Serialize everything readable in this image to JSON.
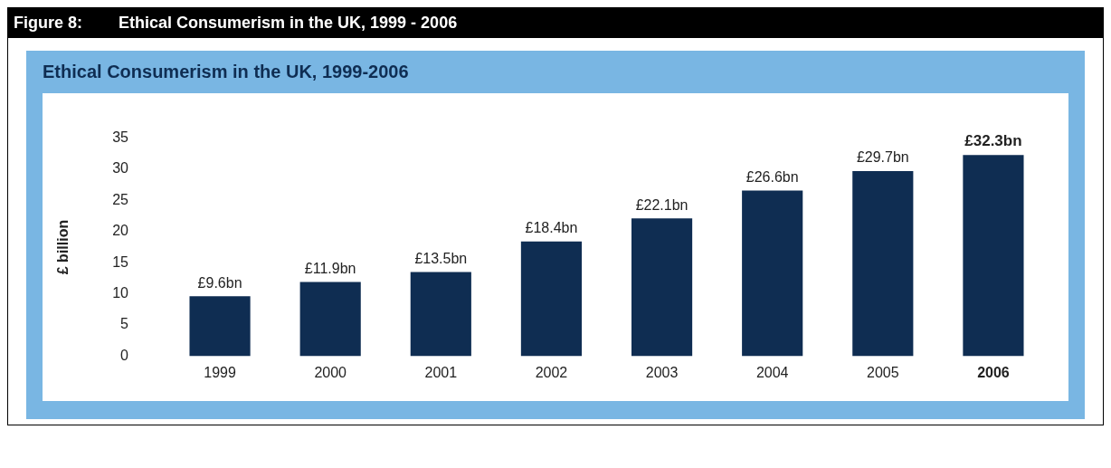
{
  "chart_data": {
    "type": "bar",
    "title": "Figure 8:        Ethical Consumerism in the UK, 1999 - 2006",
    "subtitle": "Ethical Consumerism in the UK, 1999-2006",
    "ylabel": "£ billion",
    "categories": [
      "1999",
      "2000",
      "2001",
      "2002",
      "2003",
      "2004",
      "2005",
      "2006"
    ],
    "values": [
      9.6,
      11.9,
      13.5,
      18.4,
      22.1,
      26.6,
      29.7,
      32.3
    ],
    "value_labels": [
      "£9.6bn",
      "£11.9bn",
      "£13.5bn",
      "£18.4bn",
      "£22.1bn",
      "£26.6bn",
      "£29.7bn",
      "£32.3bn"
    ],
    "color": "#0f2d52",
    "ylim": [
      0,
      35
    ],
    "yticks": [
      0,
      5,
      10,
      15,
      20,
      25,
      30,
      35
    ],
    "grid": false,
    "legend": false
  }
}
